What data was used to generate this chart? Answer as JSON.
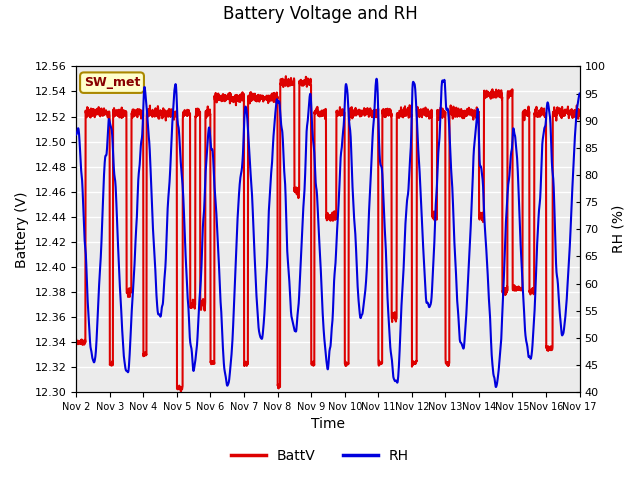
{
  "title": "Battery Voltage and RH",
  "xlabel": "Time",
  "ylabel_left": "Battery (V)",
  "ylabel_right": "RH (%)",
  "legend_label": "SW_met",
  "series1_label": "BattV",
  "series2_label": "RH",
  "series1_color": "#DD0000",
  "series2_color": "#0000DD",
  "ylim_left": [
    12.3,
    12.56
  ],
  "ylim_right": [
    40,
    100
  ],
  "yticks_left": [
    12.3,
    12.32,
    12.34,
    12.36,
    12.38,
    12.4,
    12.42,
    12.44,
    12.46,
    12.48,
    12.5,
    12.52,
    12.54,
    12.56
  ],
  "yticks_right": [
    40,
    45,
    50,
    55,
    60,
    65,
    70,
    75,
    80,
    85,
    90,
    95,
    100
  ],
  "xtick_labels": [
    "Nov 2",
    "Nov 3",
    "Nov 4",
    "Nov 5",
    "Nov 6",
    "Nov 7",
    "Nov 8",
    "Nov 9",
    "Nov 10",
    "Nov 11",
    "Nov 12",
    "Nov 13",
    "Nov 14",
    "Nov 15",
    "Nov 16",
    "Nov 17"
  ],
  "background_color": "#ffffff",
  "plot_bg_color": "#ebebeb",
  "grid_color": "#ffffff",
  "legend_box_color": "#ffffcc",
  "legend_box_edge": "#aa8800",
  "title_fontsize": 12,
  "axis_label_fontsize": 10,
  "tick_fontsize": 8,
  "linewidth": 1.5
}
